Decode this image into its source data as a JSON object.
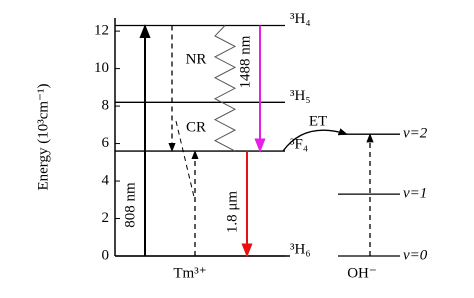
{
  "chart_data": {
    "type": "energy-levels",
    "y_label": "Energy (10³cm⁻¹)",
    "ylim": [
      0,
      12.7
    ],
    "yticks": [
      0,
      2,
      4,
      6,
      8,
      10,
      12
    ],
    "species": [
      {
        "name": "Tm³⁺",
        "levels": [
          {
            "label": "³H₆",
            "energy": 0
          },
          {
            "label": "³F₄",
            "energy": 5.6
          },
          {
            "label": "³H₅",
            "energy": 8.2
          },
          {
            "label": "³H₄",
            "energy": 12.3
          }
        ]
      },
      {
        "name": "OH⁻",
        "levels": [
          {
            "label": "v=0",
            "energy": 0
          },
          {
            "label": "v=1",
            "energy": 3.3
          },
          {
            "label": "v=2",
            "energy": 6.5
          }
        ]
      }
    ],
    "transitions": [
      "808 nm",
      "1488 nm",
      "1.8 μm"
    ],
    "annotations": [
      "NR",
      "CR",
      "ET"
    ]
  }
}
